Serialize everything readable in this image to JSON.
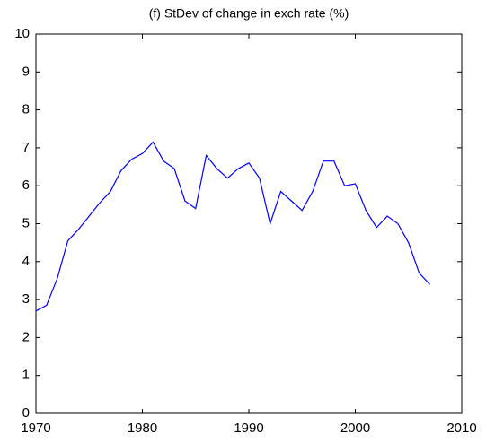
{
  "chart_data": {
    "type": "line",
    "title": "(f) StDev of change in exch rate (%)",
    "x": [
      1970,
      1971,
      1972,
      1973,
      1974,
      1975,
      1976,
      1977,
      1978,
      1979,
      1980,
      1981,
      1982,
      1983,
      1984,
      1985,
      1986,
      1987,
      1988,
      1989,
      1990,
      1991,
      1992,
      1993,
      1994,
      1995,
      1996,
      1997,
      1998,
      1999,
      2000,
      2001,
      2002,
      2003,
      2004,
      2005,
      2006,
      2007
    ],
    "series": [
      {
        "color": "#0000ff",
        "values": [
          2.7,
          2.85,
          3.55,
          4.55,
          4.85,
          5.2,
          5.55,
          5.85,
          6.4,
          6.7,
          6.85,
          7.15,
          6.65,
          6.45,
          5.6,
          5.4,
          6.8,
          6.45,
          6.2,
          6.45,
          6.6,
          6.2,
          5.0,
          5.85,
          5.6,
          5.35,
          5.85,
          6.65,
          6.65,
          6.0,
          6.05,
          5.35,
          4.9,
          5.2,
          5.0,
          4.5,
          3.7,
          3.4
        ]
      }
    ],
    "xlim": [
      1970,
      2010
    ],
    "xticks": [
      1970,
      1980,
      1990,
      2000,
      2010
    ],
    "ylim": [
      0,
      10
    ],
    "yticks": [
      0,
      1,
      2,
      3,
      4,
      5,
      6,
      7,
      8,
      9,
      10
    ]
  }
}
